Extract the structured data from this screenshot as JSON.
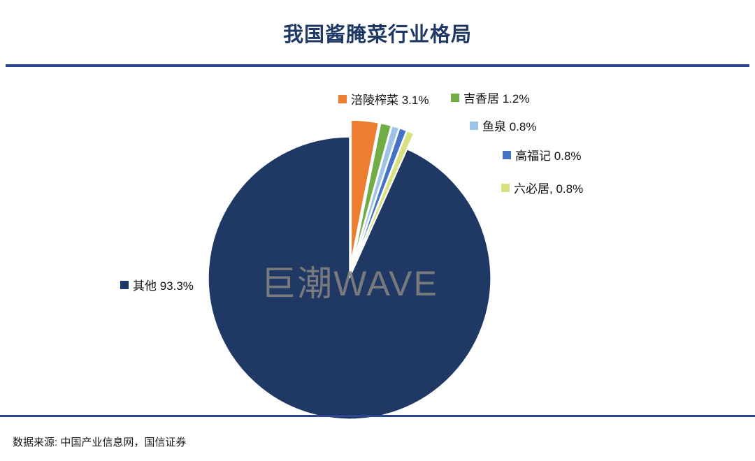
{
  "header": {
    "title": "我国酱腌菜行业格局"
  },
  "watermark": "巨潮WAVE",
  "footer": {
    "source": "数据来源: 中国产业信息网，国信证券"
  },
  "colors": {
    "accent": "#1F3864",
    "divider": "#2B4590"
  },
  "chart_data": {
    "type": "pie",
    "title": "我国酱腌菜行业格局",
    "start_angle_deg": -90,
    "direction": "clockwise",
    "legend_position": "around",
    "slices": [
      {
        "label": "涪陵榨菜",
        "display": "涪陵榨菜 3.1%",
        "value": 3.1,
        "color": "#ED7D31",
        "exploded": true
      },
      {
        "label": "吉香居",
        "display": "吉香居 1.2%",
        "value": 1.2,
        "color": "#70AD47",
        "exploded": true
      },
      {
        "label": "鱼泉",
        "display": "鱼泉 0.8%",
        "value": 0.8,
        "color": "#9DC3E6",
        "exploded": true
      },
      {
        "label": "高福记",
        "display": "高福记 0.8%",
        "value": 0.8,
        "color": "#4472C4",
        "exploded": true
      },
      {
        "label": "六必居",
        "display": "六必居, 0.8%",
        "value": 0.8,
        "color": "#D9E07F",
        "exploded": true
      },
      {
        "label": "其他",
        "display": "其他 93.3%",
        "value": 93.3,
        "color": "#1F3864",
        "exploded": false
      }
    ]
  }
}
